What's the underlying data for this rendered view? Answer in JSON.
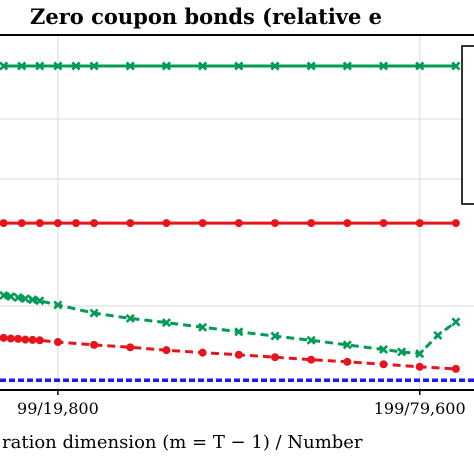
{
  "chart_data": {
    "type": "line",
    "title": "Zero coupon bonds (relative e",
    "xlabel": "ration dimension (m = T − 1) / Number",
    "x_tick_labels": [
      "99/19,800",
      "199/79,600"
    ],
    "x_ticks": [
      99,
      199
    ],
    "xlim": [
      83,
      214
    ],
    "ylim": [
      0,
      1
    ],
    "grid": true,
    "legend": "right (cut off)",
    "series": [
      {
        "color": "#009b55",
        "style": "solid",
        "marker": "x",
        "x": [
          84,
          89,
          94,
          99,
          104,
          109,
          119,
          129,
          139,
          149,
          159,
          169,
          179,
          189,
          199,
          209
        ],
        "y": [
          0.915,
          0.915,
          0.915,
          0.915,
          0.915,
          0.915,
          0.915,
          0.915,
          0.915,
          0.915,
          0.915,
          0.915,
          0.915,
          0.915,
          0.915,
          0.915
        ]
      },
      {
        "color": "#e8141c",
        "style": "solid",
        "marker": "o",
        "x": [
          84,
          89,
          94,
          99,
          104,
          109,
          119,
          129,
          139,
          149,
          159,
          169,
          179,
          189,
          199,
          209
        ],
        "y": [
          0.47,
          0.47,
          0.47,
          0.47,
          0.47,
          0.47,
          0.47,
          0.47,
          0.47,
          0.47,
          0.47,
          0.47,
          0.47,
          0.47,
          0.47,
          0.47
        ]
      },
      {
        "color": "#009b55",
        "style": "dashed",
        "marker": "x",
        "x": [
          84,
          86,
          88,
          90,
          92,
          94,
          99,
          109,
          119,
          129,
          139,
          149,
          159,
          169,
          179,
          189,
          194,
          199,
          204,
          209
        ],
        "y": [
          0.265,
          0.262,
          0.259,
          0.256,
          0.253,
          0.25,
          0.238,
          0.215,
          0.2,
          0.188,
          0.175,
          0.162,
          0.15,
          0.138,
          0.125,
          0.112,
          0.105,
          0.1,
          0.152,
          0.19
        ]
      },
      {
        "color": "#e8141c",
        "style": "dashed",
        "marker": "o",
        "x": [
          84,
          86,
          88,
          90,
          92,
          94,
          99,
          109,
          119,
          129,
          139,
          149,
          159,
          169,
          179,
          189,
          199,
          209
        ],
        "y": [
          0.145,
          0.143,
          0.142,
          0.14,
          0.139,
          0.138,
          0.133,
          0.125,
          0.118,
          0.11,
          0.103,
          0.097,
          0.09,
          0.083,
          0.077,
          0.07,
          0.063,
          0.057
        ]
      },
      {
        "color": "#1a1aff",
        "style": "dashed",
        "marker": "none",
        "x": [
          83,
          214
        ],
        "y": [
          0.025,
          0.025
        ]
      }
    ]
  }
}
